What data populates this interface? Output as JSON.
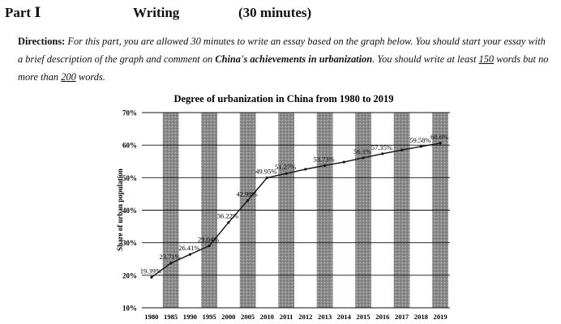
{
  "header": {
    "part": "Part Ⅰ",
    "section": "Writing",
    "duration": "(30 minutes)"
  },
  "directions": {
    "lead": "Directions:",
    "text1": " For this part, you are allowed 30 minutes to write an essay based on the graph below. You should start your essay with a brief description of the graph and comment on ",
    "emphasis1": "China's achievements in urbanization",
    "text2": ". You should write at least ",
    "min_words": "150",
    "text3": " words but no more than ",
    "max_words": "200",
    "text4": " words."
  },
  "chart_data": {
    "type": "line",
    "title": "Degree of urbanization in China from 1980 to 2019",
    "ylabel": "Share of urban population",
    "xlabel": "",
    "categories": [
      "1980",
      "1985",
      "1990",
      "1995",
      "2000",
      "2005",
      "2010",
      "2011",
      "2012",
      "2013",
      "2014",
      "2015",
      "2016",
      "2017",
      "2018",
      "2019"
    ],
    "values": [
      19.39,
      23.71,
      26.41,
      29.04,
      36.22,
      42.99,
      49.95,
      51.27,
      52.6,
      53.73,
      54.8,
      56.1,
      57.35,
      58.5,
      59.58,
      60.6
    ],
    "data_labels": [
      "19.39%",
      "23.71%",
      "26.41%",
      "29.04%",
      "36.22%",
      "42.99%",
      "49.95%",
      "51.27%",
      "",
      "53.73%",
      "",
      "56.1%",
      "57.35%",
      "",
      "59.58%",
      "60.6%"
    ],
    "yticks": [
      "10%",
      "20%",
      "30%",
      "40%",
      "50%",
      "60%",
      "70%"
    ],
    "ylim": [
      10,
      70
    ],
    "grid": true,
    "colors": {
      "line": "#111111",
      "stripe": "#7a7a7a",
      "text": "#111111"
    }
  }
}
